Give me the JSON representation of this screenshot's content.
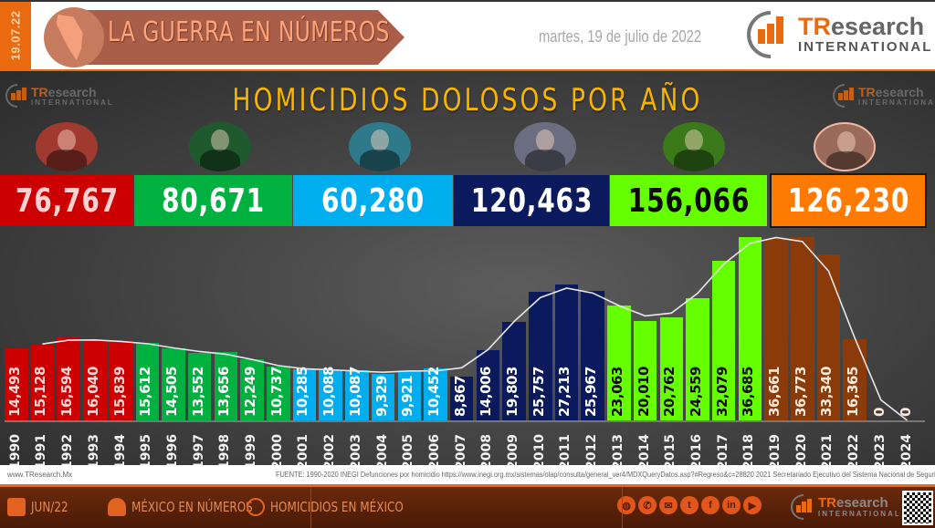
{
  "header": {
    "date_strip": "19.07.22",
    "banner_title": "LA GUERRA EN NÚMEROS",
    "date_text": "martes, 19 de julio de 2022",
    "logo": {
      "tr": "TR",
      "esearch": "esearch",
      "intl": "INTERNATIONAL"
    }
  },
  "colors": {
    "accent_orange": "#ea6a0f",
    "title_yellow": "#f7b500",
    "salinas_red": "#cc0000",
    "zedillo_green": "#00b140",
    "fox_blue": "#00aeef",
    "calderon_navy": "#0a1a5c",
    "pena_lime": "#66ff00",
    "amlo_brown": "#8b3a0a",
    "amlo_box_orange": "#ff7a00"
  },
  "presidents": [
    {
      "total": "76,767",
      "color": "#cc0000",
      "text_color": "#ffd0d0",
      "tint": "#a03a30"
    },
    {
      "total": "80,671",
      "color": "#00b140",
      "text_color": "#ffffff",
      "tint": "#1f5a2f"
    },
    {
      "total": "60,280",
      "color": "#00aeef",
      "text_color": "#ffffff",
      "tint": "#2e7a8a"
    },
    {
      "total": "120,463",
      "color": "#0a1a5c",
      "text_color": "#ffffff",
      "tint": "#6a6e80"
    },
    {
      "total": "156,066",
      "color": "#66ff00",
      "text_color": "#0a0a0a",
      "tint": "#3a7a1a"
    },
    {
      "total": "126,230",
      "color": "#ff7a00",
      "text_color": "#ffffff",
      "tint": "#9a6a5a"
    }
  ],
  "chart_data": {
    "type": "bar",
    "title": "HOMICIDIOS DOLOSOS POR AÑO",
    "xlabel": "",
    "ylabel": "",
    "ylim": [
      0,
      37000
    ],
    "grid": false,
    "legend": "none",
    "categories": [
      "1990",
      "1991",
      "1992",
      "1993",
      "1994",
      "1995",
      "1996",
      "1997",
      "1998",
      "1999",
      "2000",
      "2001",
      "2002",
      "2003",
      "2004",
      "2005",
      "2006",
      "2007",
      "2008",
      "2009",
      "2010",
      "2011",
      "2012",
      "2013",
      "2014",
      "2015",
      "2016",
      "2017",
      "2018",
      "2019",
      "2020",
      "2021",
      "2022",
      "2023",
      "2024"
    ],
    "values": [
      14493,
      15128,
      16594,
      16040,
      15839,
      15612,
      14505,
      13552,
      13656,
      12249,
      10737,
      10285,
      10088,
      10087,
      9329,
      9921,
      10452,
      8867,
      14006,
      19803,
      25757,
      27213,
      25967,
      23063,
      20010,
      20762,
      24559,
      32079,
      36685,
      36661,
      36773,
      33340,
      16365,
      0,
      0
    ],
    "labels": [
      "14,493",
      "15,128",
      "16,594",
      "16,040",
      "15,839",
      "15,612",
      "14,505",
      "13,552",
      "13,656",
      "12,249",
      "10,737",
      "10,285",
      "10,088",
      "10,087",
      "9,329",
      "9,921",
      "10,452",
      "8,867",
      "14,006",
      "19,803",
      "25,757",
      "27,213",
      "25,967",
      "23,063",
      "20,010",
      "20,762",
      "24,559",
      "32,079",
      "36,685",
      "36,661",
      "36,773",
      "33,340",
      "16,365",
      "0",
      "0"
    ],
    "series_groups": [
      {
        "period": "1990-1994",
        "color": "#cc0000",
        "total": "76,767"
      },
      {
        "period": "1995-2000",
        "color": "#00b140",
        "total": "80,671"
      },
      {
        "period": "2001-2006",
        "color": "#00aeef",
        "total": "60,280"
      },
      {
        "period": "2007-2012",
        "color": "#0a1a5c",
        "total": "120,463"
      },
      {
        "period": "2013-2018",
        "color": "#66ff00",
        "total": "156,066"
      },
      {
        "period": "2019-2024",
        "color": "#8b3a0a",
        "total": "126,230"
      }
    ],
    "trend_line": "smoothed moving average (white)"
  },
  "source": {
    "site": "www.TResearch.Mx",
    "text": "FUENTE: 1990-2020 INEGI Defunciones por homicidio https://www.inegi.org.mx/sistemas/olap/consulta/general_ver4/MDXQueryDatos.asp?#Regreso&c=28820   2021 Secretariado Ejecutivo del Sistema Nacional de Seguridad Pública |"
  },
  "footer": {
    "date": "JUN/22",
    "section": "MÉXICO EN NÚMEROS",
    "topic": "HOMICIDIOS EN MÉXICO",
    "social": [
      "globe",
      "whatsapp",
      "mail",
      "twitter",
      "facebook",
      "linkedin",
      "youtube"
    ],
    "social_glyphs": [
      "◍",
      "✆",
      "✉",
      "t",
      "f",
      "in",
      "▶"
    ]
  }
}
